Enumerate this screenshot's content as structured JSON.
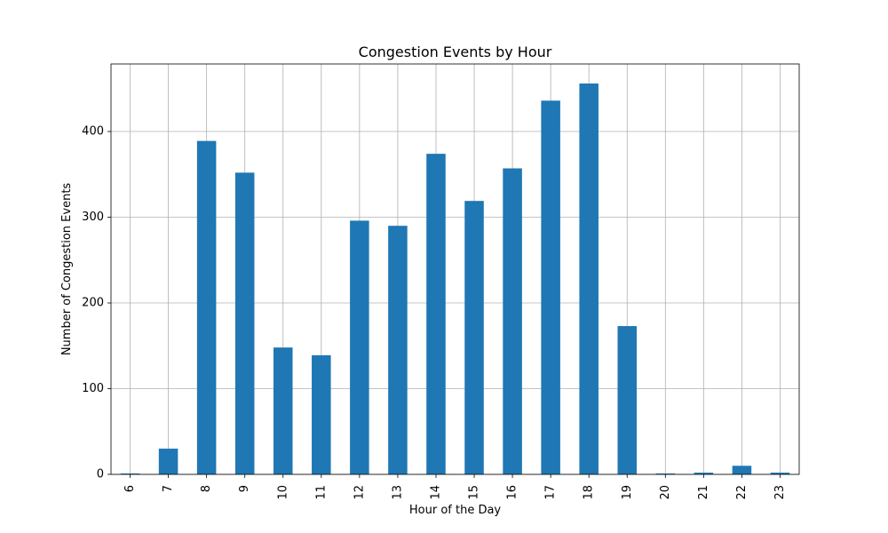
{
  "chart_data": {
    "type": "bar",
    "title": "Congestion Events by Hour",
    "xlabel": "Hour of the Day",
    "ylabel": "Number of Congestion Events",
    "categories": [
      "6",
      "7",
      "8",
      "9",
      "10",
      "11",
      "12",
      "13",
      "14",
      "15",
      "16",
      "17",
      "18",
      "19",
      "20",
      "21",
      "22",
      "23"
    ],
    "values": [
      1,
      30,
      389,
      352,
      148,
      139,
      296,
      290,
      374,
      319,
      357,
      436,
      456,
      173,
      1,
      2,
      10,
      2
    ],
    "yticks": [
      0,
      100,
      200,
      300,
      400
    ],
    "ylim": [
      0,
      478.8
    ],
    "grid": true,
    "bar_color": "#1f77b4",
    "grid_color": "#b0b0b0"
  }
}
